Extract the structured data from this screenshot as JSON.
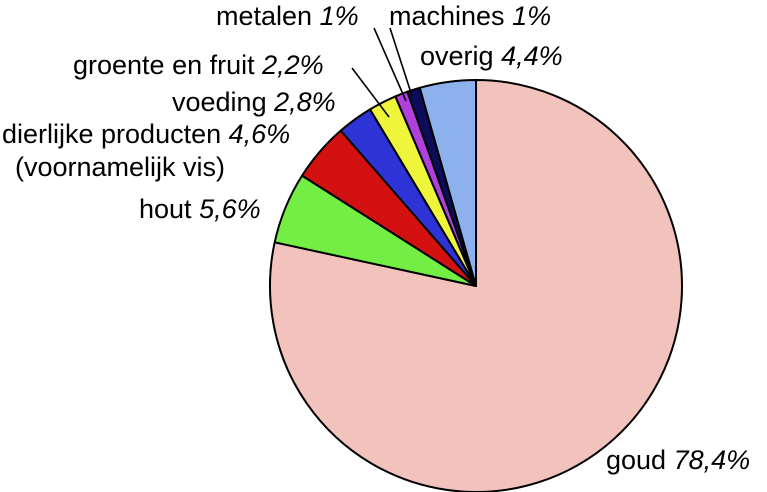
{
  "chart_data": {
    "type": "pie",
    "start_angle": "12 o'clock",
    "direction": "clockwise",
    "slices": [
      {
        "label": "goud",
        "value_text": "78,4%",
        "value": 78.4,
        "color": "#f2c2bc"
      },
      {
        "label": "hout",
        "value_text": "5,6%",
        "value": 5.6,
        "color": "#72ee45"
      },
      {
        "label": "dierlijke producten",
        "label_line2": "(voornamelijk vis)",
        "value_text": "4,6%",
        "value": 4.6,
        "color": "#d41111"
      },
      {
        "label": "voeding",
        "value_text": "2,8%",
        "value": 2.8,
        "color": "#2d33d6"
      },
      {
        "label": "groente en fruit",
        "value_text": "2,2%",
        "value": 2.2,
        "color": "#eef53b"
      },
      {
        "label": "metalen",
        "value_text": "1%",
        "value": 1.0,
        "color": "#b040dc"
      },
      {
        "label": "machines",
        "value_text": "1%",
        "value": 1.0,
        "color": "#0c0c5a"
      },
      {
        "label": "overig",
        "value_text": "4,4%",
        "value": 4.4,
        "color": "#8cb1ec"
      }
    ]
  }
}
